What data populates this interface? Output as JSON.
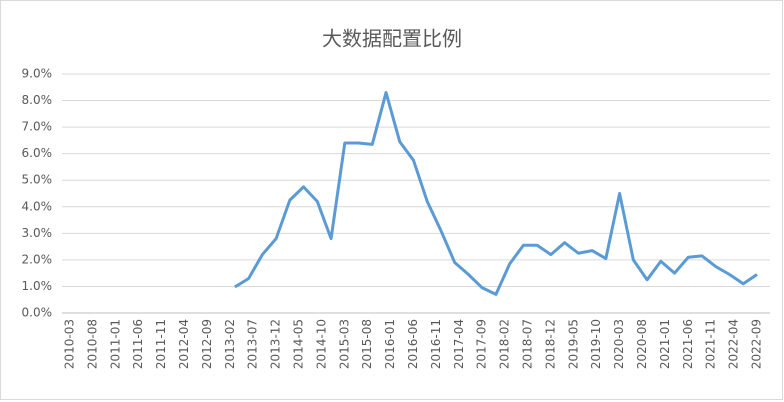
{
  "chart_data": {
    "type": "line",
    "title": "大数据配置比例",
    "x": [
      "2013-03",
      "2013-06",
      "2013-09",
      "2013-12",
      "2014-03",
      "2014-06",
      "2014-09",
      "2014-12",
      "2015-03",
      "2015-06",
      "2015-09",
      "2015-12",
      "2016-03",
      "2016-06",
      "2016-09",
      "2016-12",
      "2017-03",
      "2017-06",
      "2017-09",
      "2017-12",
      "2018-03",
      "2018-06",
      "2018-09",
      "2018-12",
      "2019-03",
      "2019-06",
      "2019-09",
      "2019-12",
      "2020-03",
      "2020-06",
      "2020-09",
      "2020-12",
      "2021-03",
      "2021-06",
      "2021-09",
      "2021-12",
      "2022-03",
      "2022-06",
      "2022-09"
    ],
    "series": [
      {
        "color": "#5b9bd5",
        "values": [
          0.98,
          1.3,
          2.2,
          2.8,
          4.25,
          4.75,
          4.2,
          2.8,
          6.4,
          6.4,
          6.35,
          8.3,
          6.45,
          5.75,
          4.2,
          3.1,
          1.9,
          1.45,
          0.95,
          0.7,
          1.85,
          2.55,
          2.55,
          2.2,
          2.65,
          2.25,
          2.35,
          2.05,
          4.5,
          2.0,
          1.25,
          1.95,
          1.5,
          2.1,
          2.15,
          1.75,
          1.45,
          1.1,
          1.45
        ]
      }
    ],
    "xlim": [
      "2010-03",
      "2022-09"
    ],
    "xticks": [
      "2010-03",
      "2010-08",
      "2011-01",
      "2011-06",
      "2011-11",
      "2012-04",
      "2012-09",
      "2013-02",
      "2013-07",
      "2013-12",
      "2014-05",
      "2014-10",
      "2015-03",
      "2015-08",
      "2016-01",
      "2016-06",
      "2016-11",
      "2017-04",
      "2017-09",
      "2018-02",
      "2018-07",
      "2018-12",
      "2019-05",
      "2019-10",
      "2020-03",
      "2020-08",
      "2021-01",
      "2021-06",
      "2021-11",
      "2022-04",
      "2022-09"
    ],
    "ylim": [
      0,
      9
    ],
    "yticks": [
      {
        "value": 0,
        "label": "0.0%"
      },
      {
        "value": 1,
        "label": "1.0%"
      },
      {
        "value": 2,
        "label": "2.0%"
      },
      {
        "value": 3,
        "label": "3.0%"
      },
      {
        "value": 4,
        "label": "4.0%"
      },
      {
        "value": 5,
        "label": "5.0%"
      },
      {
        "value": 6,
        "label": "6.0%"
      },
      {
        "value": 7,
        "label": "7.0%"
      },
      {
        "value": 8,
        "label": "8.0%"
      },
      {
        "value": 9,
        "label": "9.0%"
      }
    ],
    "grid": true
  }
}
